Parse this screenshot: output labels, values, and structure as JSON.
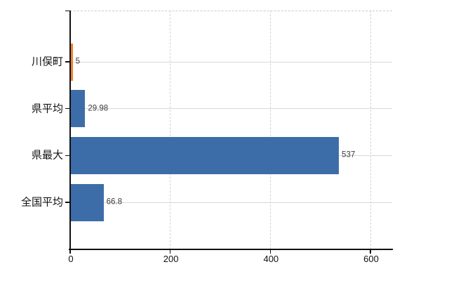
{
  "chart_data": {
    "type": "bar",
    "orientation": "horizontal",
    "title": "",
    "xlabel": "",
    "ylabel": "",
    "categories": [
      "川俣町",
      "県平均",
      "県最大",
      "全国平均"
    ],
    "values": [
      5,
      29.98,
      537,
      66.8
    ],
    "value_labels": [
      "5",
      "29.98",
      "537",
      "66.8"
    ],
    "bar_colors": [
      "#ee8130",
      "#3d6da8",
      "#3d6da8",
      "#3d6da8"
    ],
    "x_ticks": [
      0,
      200,
      400,
      600
    ],
    "x_tick_labels": [
      "0",
      "200",
      "400",
      "600"
    ],
    "xlim": [
      0,
      643.5
    ],
    "grid": "on",
    "legend": "none",
    "colors": {
      "bar_blue": "#3d6da8",
      "bar_orange": "#ee8130",
      "axis": "#111111",
      "grid_vertical": "#d8d0d0",
      "grid_horizontal": "#d5dbd5",
      "top_border": "#cfc9c9",
      "value_label": "#3b3b3b",
      "background": "#ffffff"
    }
  }
}
